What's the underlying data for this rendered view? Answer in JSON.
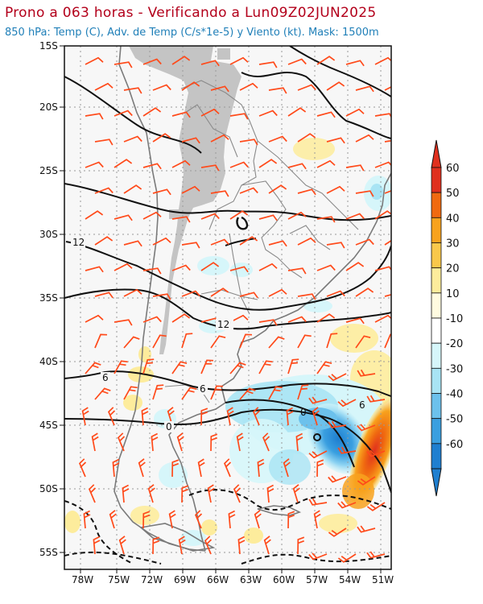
{
  "header": {
    "title": "Prono a 063 horas - Verificando a Lun09Z02JUN2025",
    "subtitle": "850 hPa: Temp (C), Adv. de Temp (C/s*1e-5) y Viento (kt). Mask: 1500m"
  },
  "map": {
    "lat_labels": [
      "15S",
      "20S",
      "25S",
      "30S",
      "35S",
      "40S",
      "45S",
      "50S",
      "55S"
    ],
    "lon_labels": [
      "78W",
      "75W",
      "72W",
      "69W",
      "66W",
      "63W",
      "60W",
      "57W",
      "54W",
      "51W"
    ],
    "contour_labels": [
      "12",
      "12",
      "6",
      "6",
      "6",
      "0",
      "0"
    ]
  },
  "colorbar": {
    "labels": [
      "60",
      "50",
      "40",
      "30",
      "20",
      "10",
      "-10",
      "-20",
      "-30",
      "-40",
      "-50",
      "-60"
    ],
    "colors": [
      "#e0301e",
      "#f06a10",
      "#f8a21e",
      "#f9c84b",
      "#fdec9c",
      "#fffbe0",
      "#ffffff",
      "#d6f6fa",
      "#a8e4f4",
      "#6cc1ec",
      "#3a9fe0",
      "#1f7fd0"
    ]
  },
  "colors": {
    "title": "#b3001b",
    "subtitle": "#1f7fb8",
    "wind_barbs": "#ff4a1a",
    "mask": "#c4c4c4"
  }
}
